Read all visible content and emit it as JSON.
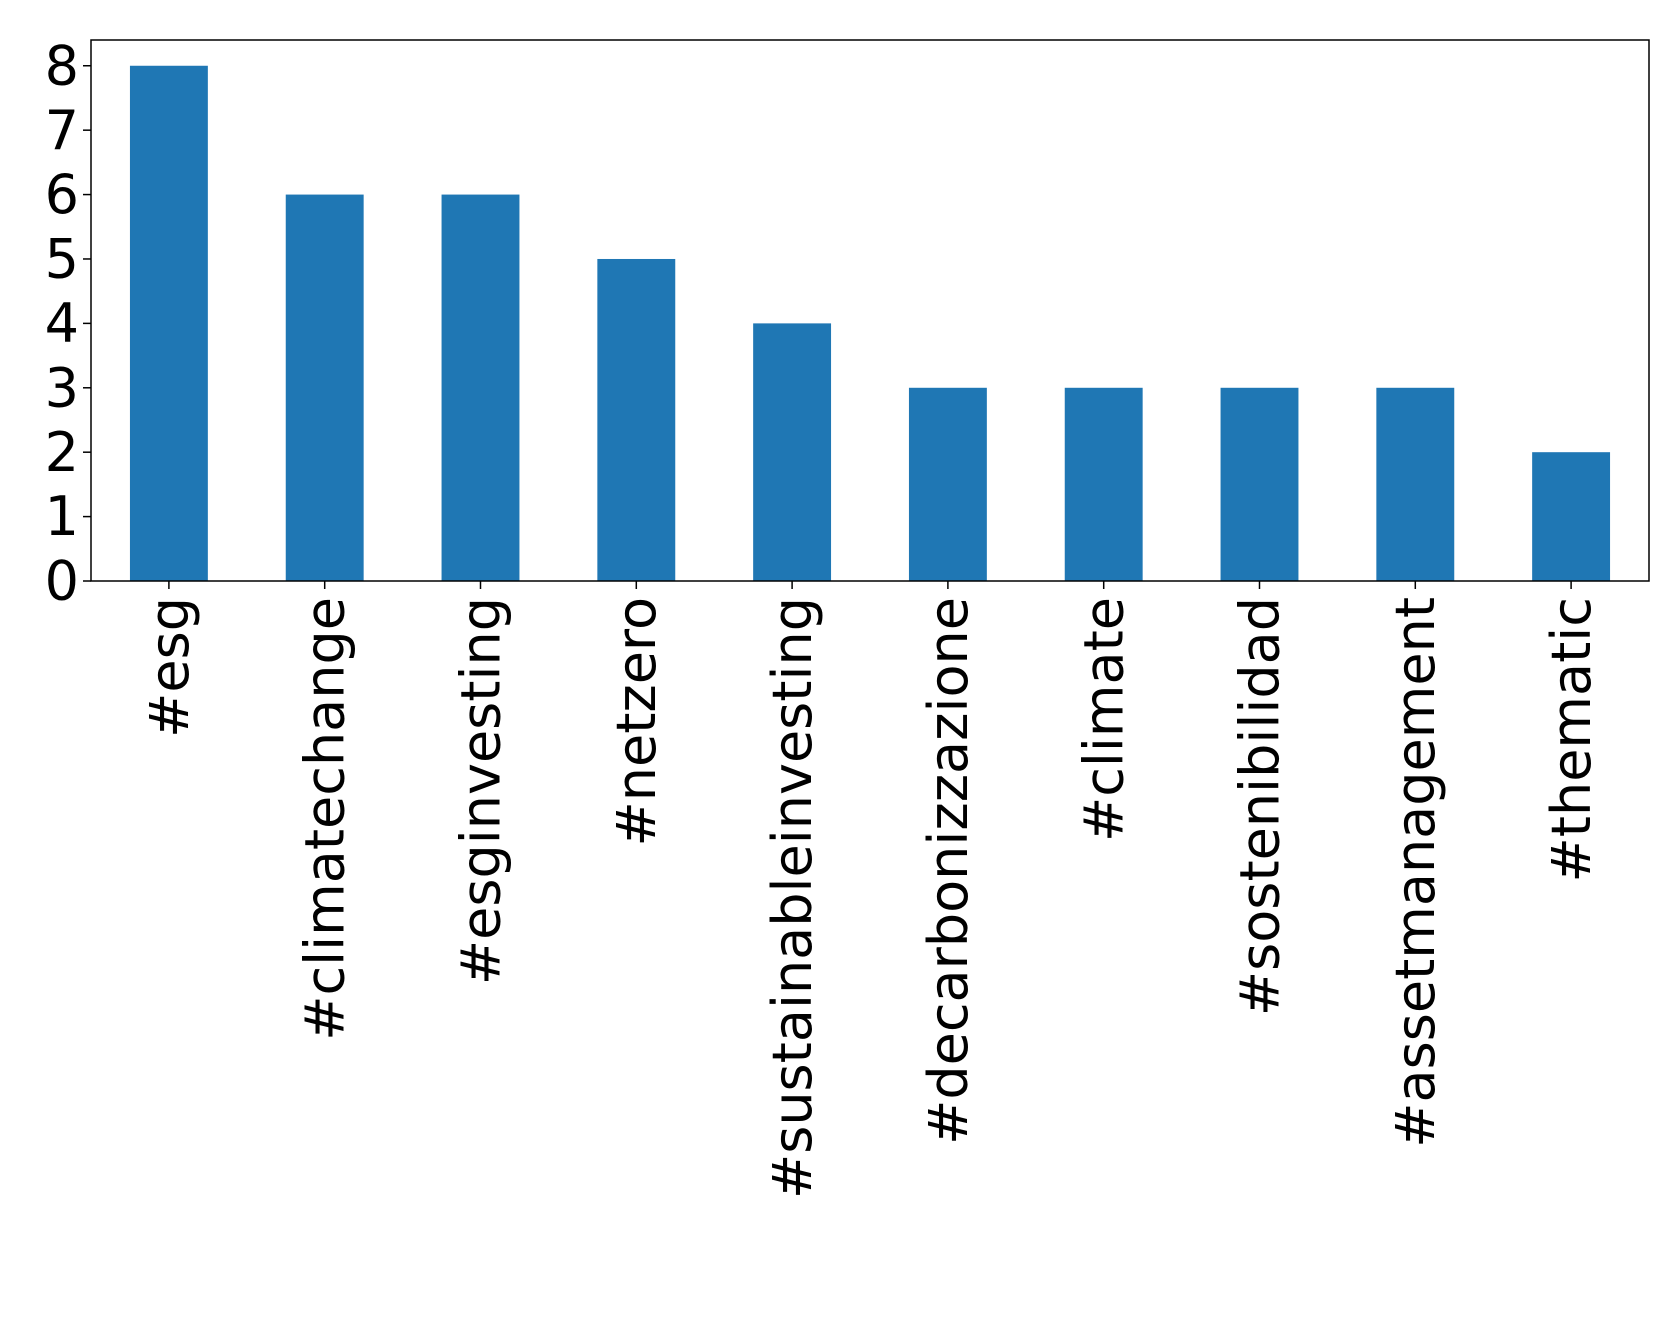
{
  "chart_data": {
    "type": "bar",
    "categories": [
      "#esg",
      "#climatechange",
      "#esginvesting",
      "#netzero",
      "#sustainableinvesting",
      "#decarbonizzazione",
      "#climate",
      "#sostenibilidad",
      "#assetmanagement",
      "#thematic"
    ],
    "values": [
      8,
      6,
      6,
      5,
      4,
      3,
      3,
      3,
      3,
      2
    ],
    "color": "#1f77b4",
    "ylim": [
      0,
      8.4
    ],
    "yticks": [
      0,
      1,
      2,
      3,
      4,
      5,
      6,
      7,
      8
    ],
    "grid": false
  }
}
